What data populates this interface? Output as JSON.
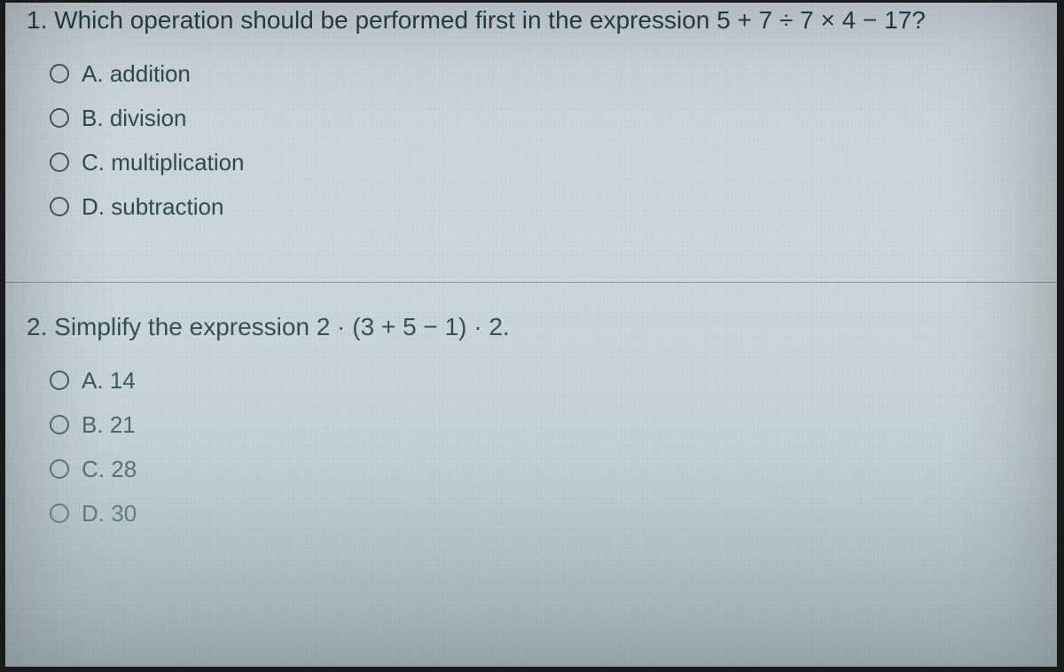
{
  "quiz": {
    "questions": [
      {
        "number": "1.",
        "prompt": "Which operation should be performed first in the expression 5 + 7 ÷ 7 × 4 − 17?",
        "options": [
          {
            "letter": "A.",
            "text": "addition"
          },
          {
            "letter": "B.",
            "text": "division"
          },
          {
            "letter": "C.",
            "text": "multiplication"
          },
          {
            "letter": "D.",
            "text": "subtraction"
          }
        ]
      },
      {
        "number": "2.",
        "prompt": "Simplify the expression 2 · (3 + 5 − 1) · 2.",
        "options": [
          {
            "letter": "A.",
            "text": "14"
          },
          {
            "letter": "B.",
            "text": "21"
          },
          {
            "letter": "C.",
            "text": "28"
          },
          {
            "letter": "D.",
            "text": "30"
          }
        ]
      }
    ]
  },
  "style": {
    "text_color": "#213c46",
    "divider_color": "rgba(90,110,115,0.55)",
    "radio_border": "#3a5860",
    "question_fontsize": 28,
    "option_fontsize": 26,
    "background_gradient": [
      "#c8d2d8",
      "#cad6da",
      "#c6d4d7",
      "#bfd0d3",
      "#b7cbcf"
    ]
  }
}
